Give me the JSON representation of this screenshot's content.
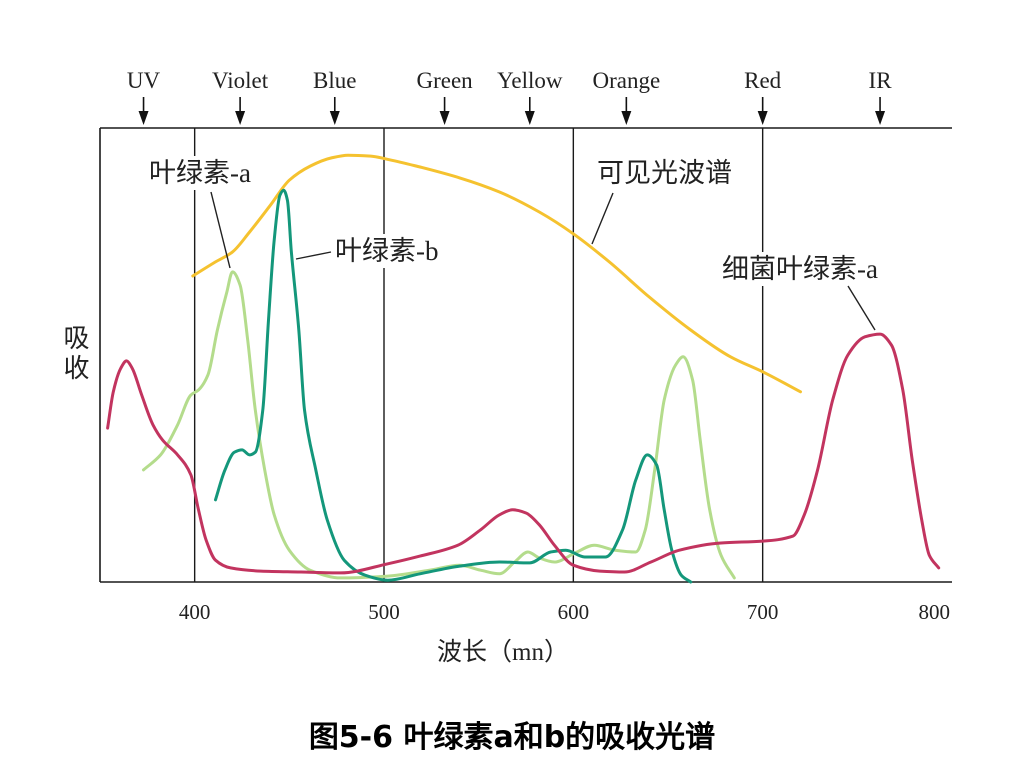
{
  "chart_data": {
    "type": "line",
    "title": "图5-6 叶绿素a和b的吸收光谱",
    "xlabel": "波长（mn）",
    "ylabel": "吸收",
    "xlim": [
      350,
      800
    ],
    "ylim": [
      0,
      100
    ],
    "xticks": [
      400,
      500,
      600,
      700,
      800
    ],
    "grid_x": [
      400,
      500,
      600,
      700
    ],
    "band_markers": [
      {
        "label": "UV",
        "wavelength": 373
      },
      {
        "label": "Violet",
        "wavelength": 424
      },
      {
        "label": "Blue",
        "wavelength": 474
      },
      {
        "label": "Green",
        "wavelength": 532
      },
      {
        "label": "Yellow",
        "wavelength": 577
      },
      {
        "label": "Orange",
        "wavelength": 628
      },
      {
        "label": "Red",
        "wavelength": 700
      },
      {
        "label": "IR",
        "wavelength": 762
      }
    ],
    "series": [
      {
        "name": "可见光波谱",
        "color": "#f5c22f",
        "x": [
          399,
          411,
          420,
          429,
          440,
          450,
          461,
          472,
          481,
          493,
          503,
          519,
          540,
          561,
          582,
          600,
          619,
          640,
          662,
          683,
          700,
          720
        ],
        "y": [
          67.4,
          70.5,
          72.7,
          77.1,
          83.0,
          88.5,
          91.6,
          93.4,
          94.0,
          93.8,
          93.0,
          91.4,
          89.0,
          85.9,
          81.5,
          76.7,
          70.5,
          62.8,
          55.5,
          49.6,
          46.3,
          41.9
        ]
      },
      {
        "name": "叶绿素-a",
        "color": "#b4dc8c",
        "x": [
          373,
          382,
          391,
          398,
          402,
          407,
          412,
          417,
          420,
          424,
          428,
          432,
          437,
          442,
          450,
          461,
          477,
          502,
          524,
          540,
          551,
          561,
          569,
          576,
          582,
          590,
          601,
          611,
          622,
          633,
          638,
          643,
          648,
          654,
          658,
          663,
          667,
          672,
          678,
          685
        ],
        "y": [
          24.7,
          28.0,
          34.6,
          41.2,
          42.3,
          45.6,
          55.5,
          63.9,
          68.3,
          65.4,
          53.3,
          37.9,
          24.7,
          14.8,
          7.0,
          2.6,
          0.9,
          1.3,
          2.6,
          3.7,
          2.6,
          1.8,
          4.4,
          6.6,
          5.3,
          4.4,
          6.4,
          8.1,
          7.0,
          6.6,
          11.5,
          24.7,
          40.1,
          47.8,
          49.6,
          44.5,
          31.3,
          15.9,
          5.9,
          0.9
        ]
      },
      {
        "name": "叶绿素-b",
        "color": "#14977b",
        "x": [
          411,
          416,
          421,
          425,
          429,
          432,
          436,
          439,
          442,
          445,
          447,
          449,
          451,
          455,
          458,
          464,
          470,
          479,
          490,
          502,
          519,
          540,
          561,
          577,
          588,
          596,
          606,
          617,
          626,
          633,
          639,
          644,
          648,
          652,
          657,
          662
        ],
        "y": [
          18.1,
          24.7,
          28.6,
          29.1,
          28.0,
          28.6,
          37.9,
          57.7,
          75.3,
          85.2,
          86.3,
          84.1,
          73.1,
          55.5,
          37.9,
          24.7,
          13.7,
          4.8,
          1.5,
          0.4,
          1.8,
          3.5,
          4.4,
          4.2,
          6.6,
          7.0,
          5.5,
          5.5,
          11.5,
          22.5,
          28.0,
          25.8,
          15.9,
          7.0,
          1.5,
          0.0
        ]
      },
      {
        "name": "细菌叶绿素-a",
        "color": "#c2345f",
        "x": [
          354,
          357,
          361,
          364,
          367,
          372,
          378,
          383,
          391,
          398,
          402,
          406,
          411,
          419,
          435,
          456,
          477,
          502,
          519,
          539,
          551,
          561,
          568,
          575,
          582,
          590,
          600,
          614,
          627,
          641,
          656,
          678,
          700,
          716,
          722,
          729,
          737,
          745,
          754,
          762,
          768,
          774,
          779,
          784,
          788,
          793
        ],
        "y": [
          33.9,
          41.9,
          47.1,
          48.7,
          47.1,
          41.2,
          34.6,
          31.3,
          28.0,
          23.6,
          15.9,
          9.3,
          4.8,
          3.1,
          2.4,
          2.2,
          2.0,
          4.0,
          5.7,
          8.1,
          11.5,
          14.8,
          15.9,
          15.2,
          12.6,
          8.1,
          3.7,
          2.4,
          2.2,
          4.4,
          7.0,
          8.6,
          9.0,
          10.1,
          14.8,
          24.7,
          40.1,
          50.0,
          54.0,
          54.6,
          52.2,
          42.3,
          26.9,
          13.7,
          5.9,
          3.1
        ]
      }
    ]
  }
}
